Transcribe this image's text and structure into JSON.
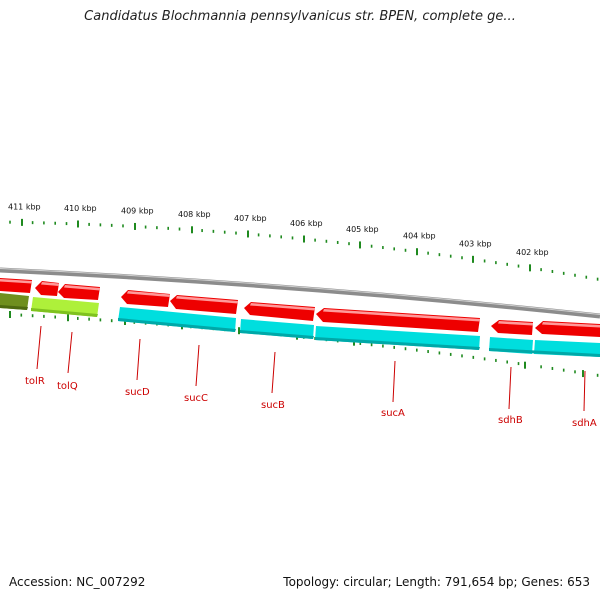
{
  "title": "Candidatus Blochmannia pennsylvanicus str. BPEN, complete ge...",
  "footer": {
    "accession": "Accession: NC_007292",
    "summary": "Topology: circular; Length: 791,654 bp; Genes: 653"
  },
  "colors": {
    "backbone": "#8c8c8c",
    "tick": "#1f8a1f",
    "gene_red": "#ee0000",
    "gene_cyan": "#00dede",
    "gene_lime": "#aef03a",
    "gene_olive": "#6f8f1e",
    "label": "#cc0000"
  },
  "scale_labels": [
    "411 kbp",
    "410 kbp",
    "409 kbp",
    "408 kbp",
    "407 kbp",
    "406 kbp",
    "405 kbp",
    "404 kbp",
    "403 kbp",
    "402 kbp"
  ],
  "gene_labels": [
    "tolR",
    "tolQ",
    "sucD",
    "sucC",
    "sucB",
    "sucA",
    "sdhB",
    "sdhA"
  ]
}
